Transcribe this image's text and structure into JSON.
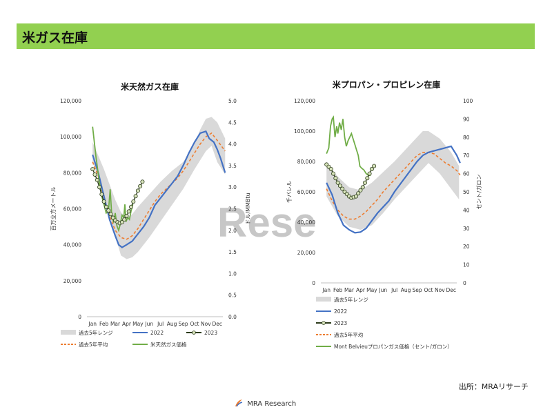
{
  "page": {
    "title": "米ガス在庫",
    "watermark": "Rese",
    "source": "出所：MRAリサーチ",
    "logo_text": "MRA Research"
  },
  "colors": {
    "header_bg": "#92d050",
    "range": "#d9d9d9",
    "y2022": "#4472c4",
    "y2023": "#2b3a1a",
    "avg": "#ed7d31",
    "price": "#70ad47"
  },
  "chart_data": [
    {
      "type": "line",
      "title": "米天然ガス在庫",
      "ylabel": "百万立方メートル",
      "y2label": "ドル/MMBtu",
      "ylim": [
        0,
        120000
      ],
      "y2lim": [
        0,
        5
      ],
      "yticks": [
        "0",
        "20,000",
        "40,000",
        "60,000",
        "80,000",
        "100,000",
        "120,000"
      ],
      "y2ticks": [
        "0.0",
        "0.5",
        "1.0",
        "1.5",
        "2.0",
        "2.5",
        "3.0",
        "3.5",
        "4.0",
        "4.5",
        "5.0"
      ],
      "months": [
        "Jan",
        "Feb",
        "Mar",
        "Apr",
        "May",
        "Jun",
        "Jul",
        "Aug",
        "Sep",
        "Oct",
        "Nov",
        "Dec"
      ],
      "legend": [
        "過去5年レンジ",
        "2022",
        "2023",
        "過去5年平均",
        "米天然ガス価格"
      ],
      "range_low": [
        [
          0,
          86000
        ],
        [
          1,
          68000
        ],
        [
          2,
          45000
        ],
        [
          2.5,
          34000
        ],
        [
          3,
          32000
        ],
        [
          3.5,
          33000
        ],
        [
          4,
          36000
        ],
        [
          5,
          44000
        ],
        [
          6,
          53000
        ],
        [
          7,
          62000
        ],
        [
          8,
          71000
        ],
        [
          9,
          82000
        ],
        [
          10,
          92000
        ],
        [
          10.5,
          95000
        ],
        [
          11,
          86000
        ],
        [
          11.7,
          79000
        ]
      ],
      "range_high": [
        [
          0,
          97000
        ],
        [
          1,
          82000
        ],
        [
          2,
          65000
        ],
        [
          2.5,
          58000
        ],
        [
          3,
          55000
        ],
        [
          3.5,
          57000
        ],
        [
          4,
          61000
        ],
        [
          5,
          68000
        ],
        [
          6,
          75000
        ],
        [
          7,
          81000
        ],
        [
          8,
          86000
        ],
        [
          9,
          96000
        ],
        [
          9.5,
          104000
        ],
        [
          10,
          110000
        ],
        [
          10.5,
          111000
        ],
        [
          11,
          108000
        ],
        [
          11.7,
          99000
        ]
      ],
      "y2022": [
        [
          0,
          90000
        ],
        [
          0.5,
          80000
        ],
        [
          1,
          67000
        ],
        [
          1.5,
          54000
        ],
        [
          2,
          45000
        ],
        [
          2.3,
          40000
        ],
        [
          2.6,
          38500
        ],
        [
          3,
          40000
        ],
        [
          3.5,
          42000
        ],
        [
          4,
          46000
        ],
        [
          4.5,
          50000
        ],
        [
          5,
          55000
        ],
        [
          5.5,
          62000
        ],
        [
          6,
          66000
        ],
        [
          6.5,
          70000
        ],
        [
          7,
          74000
        ],
        [
          7.5,
          78000
        ],
        [
          8,
          84000
        ],
        [
          8.5,
          91000
        ],
        [
          9,
          97000
        ],
        [
          9.5,
          102000
        ],
        [
          10,
          103000
        ],
        [
          10.3,
          99000
        ],
        [
          10.7,
          97000
        ],
        [
          11,
          93000
        ],
        [
          11.3,
          88000
        ],
        [
          11.7,
          80000
        ]
      ],
      "y2023": [
        [
          0,
          82000
        ],
        [
          0.2,
          79000
        ],
        [
          0.4,
          76000
        ],
        [
          0.6,
          72000
        ],
        [
          0.8,
          68000
        ],
        [
          1,
          64000
        ],
        [
          1.2,
          61000
        ],
        [
          1.4,
          59000
        ],
        [
          1.6,
          57000
        ],
        [
          1.8,
          55000
        ],
        [
          2,
          53500
        ],
        [
          2.2,
          52500
        ],
        [
          2.4,
          52000
        ],
        [
          2.6,
          52500
        ],
        [
          2.8,
          54000
        ],
        [
          3,
          56000
        ],
        [
          3.2,
          58500
        ],
        [
          3.4,
          61000
        ],
        [
          3.6,
          64000
        ],
        [
          3.8,
          67000
        ],
        [
          4,
          70000
        ],
        [
          4.2,
          72500
        ],
        [
          4.4,
          75000
        ]
      ],
      "avg": [
        [
          0,
          86000
        ],
        [
          0.5,
          78000
        ],
        [
          1,
          66000
        ],
        [
          1.5,
          56000
        ],
        [
          2,
          48000
        ],
        [
          2.5,
          44000
        ],
        [
          3,
          43000
        ],
        [
          3.5,
          45000
        ],
        [
          4,
          49000
        ],
        [
          4.5,
          54000
        ],
        [
          5,
          59000
        ],
        [
          5.5,
          64000
        ],
        [
          6,
          68000
        ],
        [
          6.5,
          71000
        ],
        [
          7,
          74000
        ],
        [
          7.5,
          77000
        ],
        [
          8,
          81000
        ],
        [
          8.5,
          86000
        ],
        [
          9,
          91000
        ],
        [
          9.5,
          96000
        ],
        [
          10,
          100000
        ],
        [
          10.5,
          102000
        ],
        [
          11,
          98000
        ],
        [
          11.7,
          92000
        ]
      ],
      "price": [
        [
          0,
          4.4
        ],
        [
          0.3,
          3.7
        ],
        [
          0.6,
          3.1
        ],
        [
          0.8,
          2.8
        ],
        [
          1,
          2.6
        ],
        [
          1.2,
          2.4
        ],
        [
          1.4,
          2.45
        ],
        [
          1.55,
          2.95
        ],
        [
          1.7,
          2.3
        ],
        [
          1.85,
          2.2
        ],
        [
          2,
          2.4
        ],
        [
          2.15,
          2.1
        ],
        [
          2.3,
          2.0
        ],
        [
          2.45,
          2.15
        ],
        [
          2.6,
          2.35
        ],
        [
          2.75,
          2.3
        ],
        [
          2.85,
          2.6
        ],
        [
          2.95,
          2.2
        ],
        [
          3.1,
          2.3
        ],
        [
          3.25,
          2.25
        ],
        [
          3.4,
          2.45
        ],
        [
          3.55,
          2.6
        ]
      ]
    },
    {
      "type": "line",
      "title": "米プロパン・プロピレン在庫",
      "ylabel": "千バレル",
      "y2label": "セント/ガロン",
      "ylim": [
        0,
        120000
      ],
      "y2lim": [
        0,
        100
      ],
      "yticks": [
        "0",
        "20,000",
        "40,000",
        "60,000",
        "80,000",
        "100,000",
        "120,000"
      ],
      "y2ticks": [
        "0",
        "10",
        "20",
        "30",
        "40",
        "50",
        "60",
        "70",
        "80",
        "90",
        "100"
      ],
      "months": [
        "Jan",
        "Feb",
        "Mar",
        "Apr",
        "May",
        "Jun",
        "Jul",
        "Aug",
        "Sep",
        "Oct",
        "Nov",
        "Dec"
      ],
      "legend": [
        "過去5年レンジ",
        "2022",
        "2023",
        "過去5年平均",
        "Mont Belvieuプロパンガス価格（セント/ガロン）"
      ],
      "range_low": [
        [
          0,
          57000
        ],
        [
          1,
          44000
        ],
        [
          2,
          37000
        ],
        [
          3,
          35000
        ],
        [
          4,
          38000
        ],
        [
          5,
          46000
        ],
        [
          6,
          55000
        ],
        [
          7,
          63000
        ],
        [
          8,
          71000
        ],
        [
          9,
          79000
        ],
        [
          10,
          72000
        ],
        [
          11,
          62000
        ],
        [
          11.7,
          55000
        ]
      ],
      "range_high": [
        [
          0,
          79000
        ],
        [
          1,
          70000
        ],
        [
          2,
          63000
        ],
        [
          3,
          61000
        ],
        [
          4,
          66000
        ],
        [
          5,
          73000
        ],
        [
          6,
          80000
        ],
        [
          7,
          88000
        ],
        [
          8,
          96000
        ],
        [
          8.5,
          100000
        ],
        [
          9,
          100000
        ],
        [
          10,
          95000
        ],
        [
          11,
          86000
        ],
        [
          11.7,
          77000
        ]
      ],
      "y2022": [
        [
          0,
          66000
        ],
        [
          0.5,
          58000
        ],
        [
          1,
          46000
        ],
        [
          1.5,
          38000
        ],
        [
          2,
          35000
        ],
        [
          2.5,
          33000
        ],
        [
          3,
          33500
        ],
        [
          3.5,
          36000
        ],
        [
          4,
          41000
        ],
        [
          4.5,
          46000
        ],
        [
          5,
          50000
        ],
        [
          5.5,
          54000
        ],
        [
          6,
          60000
        ],
        [
          6.5,
          65000
        ],
        [
          7,
          70000
        ],
        [
          7.5,
          75000
        ],
        [
          8,
          80000
        ],
        [
          8.5,
          84000
        ],
        [
          9,
          86000
        ],
        [
          9.5,
          87000
        ],
        [
          10,
          88000
        ],
        [
          10.5,
          89000
        ],
        [
          11,
          90000
        ],
        [
          11.5,
          84000
        ],
        [
          11.8,
          79000
        ]
      ],
      "y2023": [
        [
          0,
          78000
        ],
        [
          0.2,
          76500
        ],
        [
          0.4,
          75000
        ],
        [
          0.6,
          72000
        ],
        [
          0.8,
          69000
        ],
        [
          1,
          66000
        ],
        [
          1.2,
          64000
        ],
        [
          1.4,
          62000
        ],
        [
          1.6,
          60000
        ],
        [
          1.8,
          58500
        ],
        [
          2,
          57000
        ],
        [
          2.2,
          56000
        ],
        [
          2.4,
          56500
        ],
        [
          2.6,
          57000
        ],
        [
          2.8,
          59000
        ],
        [
          3,
          61000
        ],
        [
          3.2,
          63000
        ],
        [
          3.4,
          66000
        ],
        [
          3.6,
          69000
        ],
        [
          3.8,
          72000
        ],
        [
          4,
          75000
        ],
        [
          4.2,
          77000
        ]
      ],
      "avg": [
        [
          0,
          62000
        ],
        [
          0.5,
          54000
        ],
        [
          1,
          48000
        ],
        [
          1.5,
          44000
        ],
        [
          2,
          42000
        ],
        [
          2.5,
          42000
        ],
        [
          3,
          44000
        ],
        [
          3.5,
          47000
        ],
        [
          4,
          51000
        ],
        [
          4.5,
          55000
        ],
        [
          5,
          60000
        ],
        [
          5.5,
          64000
        ],
        [
          6,
          68000
        ],
        [
          6.5,
          72000
        ],
        [
          7,
          76000
        ],
        [
          7.5,
          80000
        ],
        [
          8,
          84000
        ],
        [
          8.5,
          86000
        ],
        [
          9,
          86000
        ],
        [
          9.5,
          85000
        ],
        [
          10,
          82000
        ],
        [
          10.5,
          79000
        ],
        [
          11,
          77000
        ],
        [
          11.5,
          74000
        ],
        [
          11.8,
          71000
        ]
      ],
      "price": [
        [
          0,
          71
        ],
        [
          0.2,
          74
        ],
        [
          0.35,
          86
        ],
        [
          0.5,
          90
        ],
        [
          0.6,
          91
        ],
        [
          0.75,
          80
        ],
        [
          0.9,
          86
        ],
        [
          1,
          82
        ],
        [
          1.15,
          88
        ],
        [
          1.3,
          84
        ],
        [
          1.45,
          90
        ],
        [
          1.6,
          80
        ],
        [
          1.75,
          75
        ],
        [
          1.9,
          78
        ],
        [
          2.05,
          80
        ],
        [
          2.2,
          82
        ],
        [
          2.35,
          79
        ],
        [
          2.5,
          76
        ],
        [
          2.65,
          73
        ],
        [
          2.8,
          70
        ],
        [
          2.95,
          64
        ],
        [
          3.1,
          63
        ],
        [
          3.3,
          62
        ],
        [
          3.5,
          60
        ],
        [
          3.7,
          59
        ],
        [
          3.9,
          59
        ]
      ]
    }
  ]
}
